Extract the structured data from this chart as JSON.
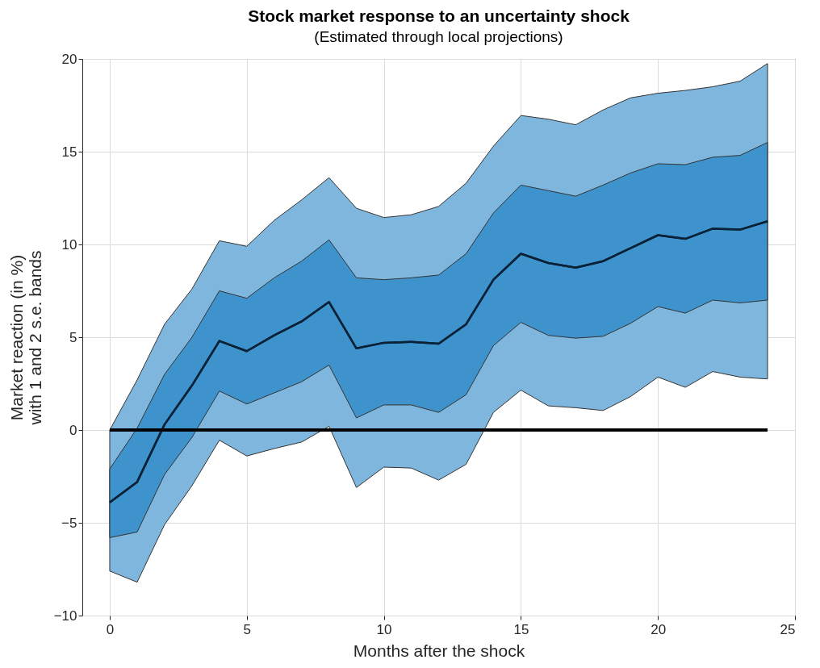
{
  "chart_data": {
    "type": "line",
    "title": "Stock market response to an uncertainty shock",
    "subtitle": "(Estimated through local projections)",
    "xlabel": "Months after the shock",
    "ylabel": "Market reaction (in %)\nwith 1 and 2 s.e. bands",
    "x": [
      0,
      1,
      2,
      3,
      4,
      5,
      6,
      7,
      8,
      9,
      10,
      11,
      12,
      13,
      14,
      15,
      16,
      17,
      18,
      19,
      20,
      21,
      22,
      23,
      24
    ],
    "series": [
      {
        "color": "#0a2238",
        "values": [
          -3.9,
          -2.8,
          0.3,
          2.4,
          4.8,
          4.25,
          5.1,
          5.85,
          6.9,
          4.4,
          4.7,
          4.75,
          4.65,
          5.7,
          8.1,
          9.5,
          9.0,
          8.75,
          9.1,
          9.8,
          10.5,
          10.3,
          10.85,
          10.8,
          11.25
        ],
        "lower": [
          -7.6,
          -8.2,
          -5.1,
          -3.0,
          -0.55,
          -1.4,
          -1.0,
          -0.65,
          0.2,
          -3.1,
          -2.0,
          -2.05,
          -2.7,
          -1.85,
          0.95,
          2.15,
          1.3,
          1.2,
          1.05,
          1.8,
          2.85,
          2.3,
          3.15,
          2.85,
          2.75
        ],
        "upper": [
          0,
          2.7,
          5.7,
          7.6,
          10.2,
          9.9,
          11.3,
          12.4,
          13.6,
          11.95,
          11.45,
          11.6,
          12.05,
          13.3,
          15.3,
          16.95,
          16.75,
          16.45,
          17.25,
          17.9,
          18.15,
          18.3,
          18.5,
          18.8,
          19.75
        ]
      },
      {
        "color": "#0a2238",
        "values": [
          -3.9,
          -2.8,
          0.3,
          2.4,
          4.8,
          4.25,
          5.1,
          5.85,
          6.9,
          4.4,
          4.7,
          4.75,
          4.65,
          5.7,
          8.1,
          9.5,
          9.0,
          8.75,
          9.1,
          9.8,
          10.5,
          10.3,
          10.85,
          10.8,
          11.25
        ],
        "lower": [
          -5.8,
          -5.5,
          -2.4,
          -0.4,
          2.1,
          1.4,
          2.0,
          2.6,
          3.5,
          0.65,
          1.35,
          1.35,
          0.95,
          1.9,
          4.55,
          5.8,
          5.1,
          4.95,
          5.05,
          5.75,
          6.65,
          6.3,
          7.0,
          6.85,
          7.0
        ],
        "upper": [
          -2.1,
          0.1,
          3.0,
          5.0,
          7.5,
          7.1,
          8.2,
          9.1,
          10.25,
          8.2,
          8.1,
          8.2,
          8.35,
          9.5,
          11.7,
          13.2,
          12.9,
          12.6,
          13.2,
          13.85,
          14.35,
          14.3,
          14.7,
          14.8,
          15.5
        ]
      }
    ],
    "ref_lines": [
      {
        "axis": "y",
        "value": 0,
        "color": "#000000"
      }
    ],
    "xlim": [
      -1,
      25
    ],
    "xticks": [
      0,
      5,
      10,
      15,
      20,
      25
    ],
    "ylim": [
      -10,
      20
    ],
    "yticks": [
      -10,
      -5,
      0,
      5,
      10,
      15,
      20
    ],
    "grid": true
  }
}
